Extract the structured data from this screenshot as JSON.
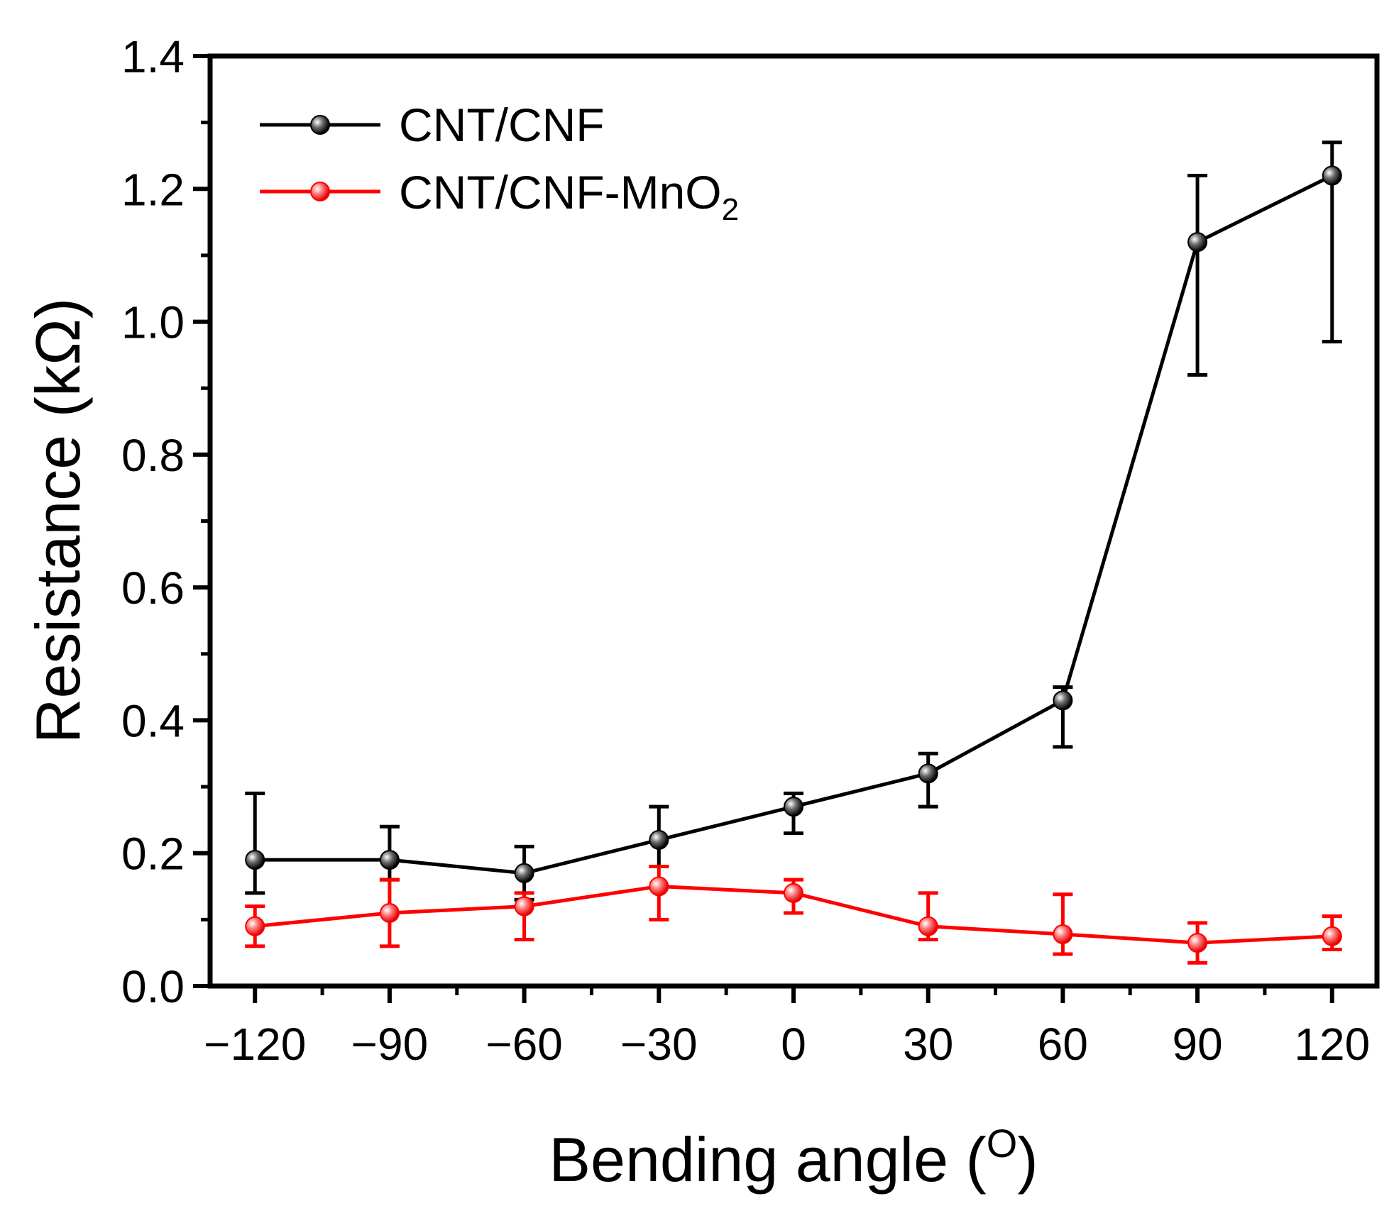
{
  "chart_data": {
    "type": "line",
    "title": "",
    "xlabel": "Bending angle",
    "xlabel_unit": "O",
    "ylabel": "Resistance (kΩ)",
    "x": [
      -120,
      -90,
      -60,
      -30,
      0,
      30,
      60,
      90,
      120
    ],
    "xlim": [
      -130,
      130
    ],
    "ylim": [
      0,
      1.4
    ],
    "xticks": [
      -120,
      -90,
      -60,
      -30,
      0,
      30,
      60,
      90,
      120
    ],
    "xtick_labels": [
      "−120",
      "−90",
      "−60",
      "−30",
      "0",
      "30",
      "60",
      "90",
      "120"
    ],
    "yticks": [
      0,
      0.2,
      0.4,
      0.6,
      0.8,
      1.0,
      1.2,
      1.4
    ],
    "ytick_labels": [
      "0.0",
      "0.2",
      "0.4",
      "0.6",
      "0.8",
      "1.0",
      "1.2",
      "1.4"
    ],
    "grid": false,
    "legend_position": "top-left",
    "series": [
      {
        "name": "CNT/CNF",
        "legend_main": "CNT/CNF",
        "legend_sub": "",
        "color": "#000000",
        "values": [
          0.19,
          0.19,
          0.17,
          0.22,
          0.27,
          0.32,
          0.43,
          1.12,
          1.22
        ],
        "err_low": [
          0.14,
          0.16,
          0.13,
          0.18,
          0.23,
          0.27,
          0.36,
          0.92,
          0.97
        ],
        "err_high": [
          0.29,
          0.24,
          0.21,
          0.27,
          0.29,
          0.35,
          0.45,
          1.22,
          1.27
        ]
      },
      {
        "name": "CNT/CNF-MnO2",
        "legend_main": "CNT/CNF-MnO",
        "legend_sub": "2",
        "color": "#ff0000",
        "values": [
          0.09,
          0.11,
          0.12,
          0.15,
          0.14,
          0.09,
          0.078,
          0.065,
          0.075
        ],
        "err_low": [
          0.06,
          0.06,
          0.07,
          0.1,
          0.11,
          0.07,
          0.048,
          0.035,
          0.055
        ],
        "err_high": [
          0.12,
          0.16,
          0.14,
          0.18,
          0.16,
          0.14,
          0.138,
          0.095,
          0.105
        ]
      }
    ]
  }
}
